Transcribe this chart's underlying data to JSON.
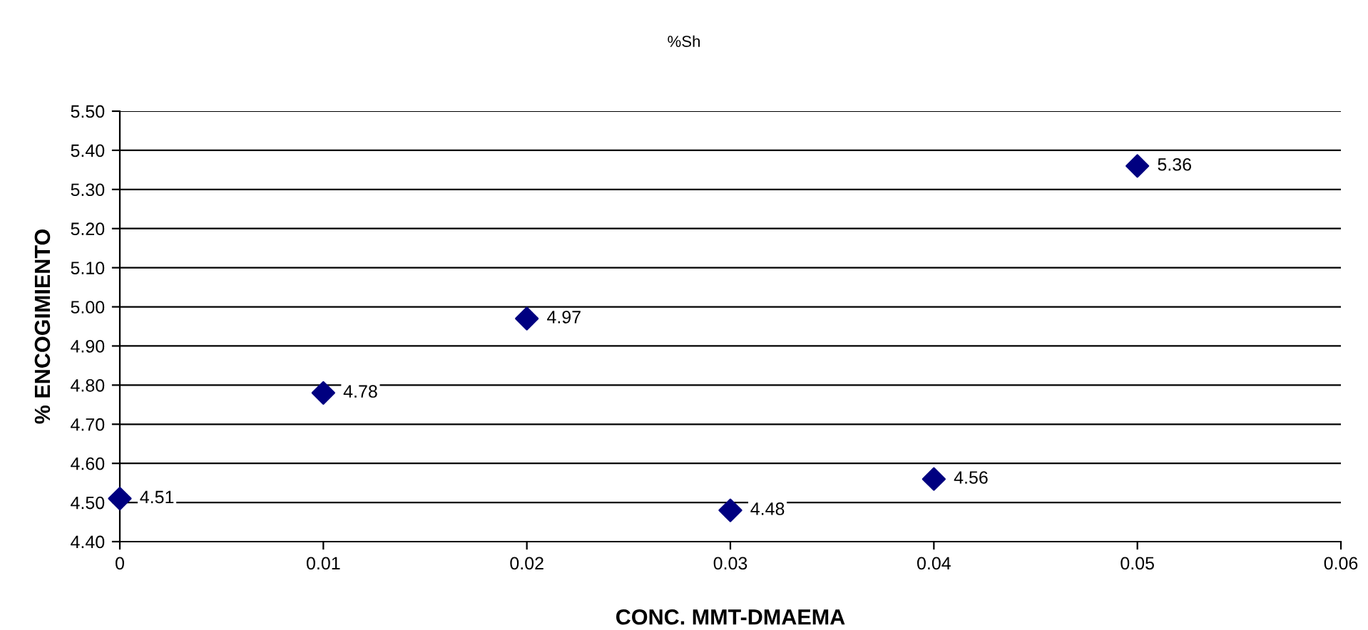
{
  "chart_data": {
    "type": "scatter",
    "title": "%Sh",
    "xlabel": "CONC. MMT-DMAEMA",
    "ylabel": "% ENCOGIMIENTO",
    "x": [
      0,
      0.01,
      0.02,
      0.03,
      0.04,
      0.05
    ],
    "series": [
      {
        "color": "#000080",
        "values": [
          4.51,
          4.78,
          4.97,
          4.48,
          4.56,
          5.36
        ]
      }
    ],
    "xlim": [
      0,
      0.06
    ],
    "xticks": [
      0,
      0.01,
      0.02,
      0.03,
      0.04,
      0.05,
      0.06
    ],
    "ylim": [
      4.4,
      5.5
    ],
    "yticks": [
      {
        "value": 4.4,
        "label": "4.40"
      },
      {
        "value": 4.5,
        "label": "4.50"
      },
      {
        "value": 4.6,
        "label": "4.60"
      },
      {
        "value": 4.7,
        "label": "4.70"
      },
      {
        "value": 4.8,
        "label": "4.80"
      },
      {
        "value": 4.9,
        "label": "4.90"
      },
      {
        "value": 5.0,
        "label": "5.00"
      },
      {
        "value": 5.1,
        "label": "5.10"
      },
      {
        "value": 5.2,
        "label": "5.20"
      },
      {
        "value": 5.3,
        "label": "5.30"
      },
      {
        "value": 5.4,
        "label": "5.40"
      },
      {
        "value": 5.5,
        "label": "5.50"
      }
    ],
    "grid": "y",
    "marker": "diamond",
    "data_labels": true
  }
}
